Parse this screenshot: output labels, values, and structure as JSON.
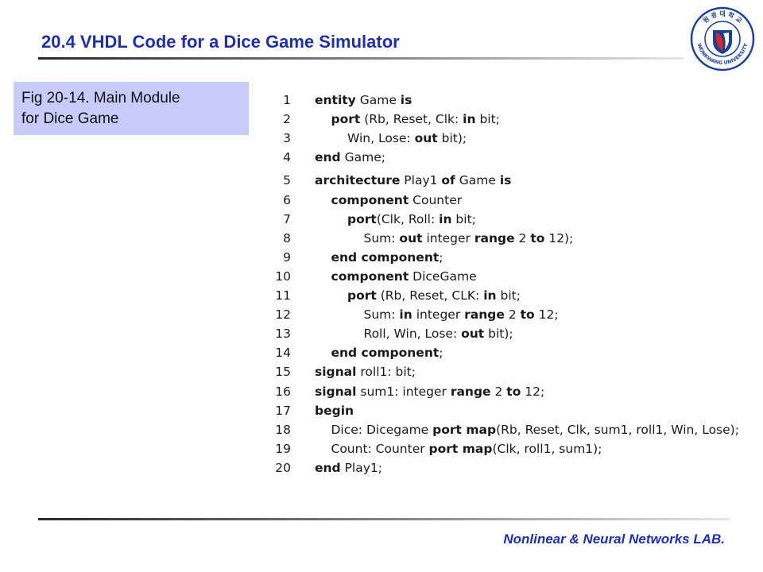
{
  "slide": {
    "title": "20.4 VHDL Code for a Dice Game Simulator",
    "caption_line1": "Fig 20-14. Main Module",
    "caption_line2": "for Dice Game",
    "footer": "Nonlinear & Neural Networks LAB."
  },
  "logo": {
    "ring_text_top": "원 광 대 학 교",
    "ring_text_bottom": "WONKWANG UNIVERSITY",
    "colors": {
      "ring": "#1c3f95",
      "emblem_red": "#d7282f",
      "emblem_blue": "#1c3f95"
    }
  },
  "code": [
    {
      "n": "1",
      "indent": 0,
      "parts": [
        [
          "kw",
          "entity"
        ],
        [
          "t",
          " Game "
        ],
        [
          "kw",
          "is"
        ]
      ]
    },
    {
      "n": "2",
      "indent": 1,
      "parts": [
        [
          "kw",
          "port"
        ],
        [
          "t",
          " (Rb, Reset, Clk: "
        ],
        [
          "kw",
          "in"
        ],
        [
          "t",
          " bit;"
        ]
      ]
    },
    {
      "n": "3",
      "indent": 2,
      "parts": [
        [
          "t",
          "Win, Lose: "
        ],
        [
          "kw",
          "out"
        ],
        [
          "t",
          " bit);"
        ]
      ]
    },
    {
      "n": "4",
      "indent": 0,
      "parts": [
        [
          "kw",
          "end"
        ],
        [
          "t",
          " Game;"
        ]
      ]
    },
    {
      "n": "5",
      "indent": 0,
      "parts": [
        [
          "kw",
          "architecture"
        ],
        [
          "t",
          " Play1 "
        ],
        [
          "kw",
          "of"
        ],
        [
          "t",
          " Game "
        ],
        [
          "kw",
          "is"
        ]
      ]
    },
    {
      "n": "6",
      "indent": 1,
      "parts": [
        [
          "kw",
          "component"
        ],
        [
          "t",
          " Counter"
        ]
      ]
    },
    {
      "n": "7",
      "indent": 2,
      "parts": [
        [
          "kw",
          "port"
        ],
        [
          "t",
          "(Clk, Roll: "
        ],
        [
          "kw",
          "in"
        ],
        [
          "t",
          " bit;"
        ]
      ]
    },
    {
      "n": "8",
      "indent": 3,
      "parts": [
        [
          "t",
          "Sum: "
        ],
        [
          "kw",
          "out"
        ],
        [
          "t",
          " integer "
        ],
        [
          "kw",
          "range"
        ],
        [
          "t",
          " 2 "
        ],
        [
          "kw",
          "to"
        ],
        [
          "t",
          " 12);"
        ]
      ]
    },
    {
      "n": "9",
      "indent": 1,
      "parts": [
        [
          "kw",
          "end component"
        ],
        [
          "t",
          ";"
        ]
      ]
    },
    {
      "n": "10",
      "indent": 1,
      "parts": [
        [
          "kw",
          "component"
        ],
        [
          "t",
          " DiceGame"
        ]
      ]
    },
    {
      "n": "11",
      "indent": 2,
      "parts": [
        [
          "kw",
          "port"
        ],
        [
          "t",
          " (Rb, Reset, CLK: "
        ],
        [
          "kw",
          "in"
        ],
        [
          "t",
          " bit;"
        ]
      ]
    },
    {
      "n": "12",
      "indent": 3,
      "parts": [
        [
          "t",
          "Sum: "
        ],
        [
          "kw",
          "in"
        ],
        [
          "t",
          " integer "
        ],
        [
          "kw",
          "range"
        ],
        [
          "t",
          " 2 "
        ],
        [
          "kw",
          "to"
        ],
        [
          "t",
          " 12;"
        ]
      ]
    },
    {
      "n": "13",
      "indent": 3,
      "parts": [
        [
          "t",
          "Roll, Win, Lose: "
        ],
        [
          "kw",
          "out"
        ],
        [
          "t",
          " bit);"
        ]
      ]
    },
    {
      "n": "14",
      "indent": 1,
      "parts": [
        [
          "kw",
          "end component"
        ],
        [
          "t",
          ";"
        ]
      ]
    },
    {
      "n": "15",
      "indent": 0,
      "parts": [
        [
          "kw",
          "signal"
        ],
        [
          "t",
          " roll1: bit;"
        ]
      ]
    },
    {
      "n": "16",
      "indent": 0,
      "parts": [
        [
          "kw",
          "signal"
        ],
        [
          "t",
          " sum1: integer "
        ],
        [
          "kw",
          "range"
        ],
        [
          "t",
          " 2 "
        ],
        [
          "kw",
          "to"
        ],
        [
          "t",
          " 12;"
        ]
      ]
    },
    {
      "n": "17",
      "indent": 0,
      "parts": [
        [
          "kw",
          "begin"
        ]
      ]
    },
    {
      "n": "18",
      "indent": 1,
      "parts": [
        [
          "t",
          "Dice: Dicegame "
        ],
        [
          "kw",
          "port map"
        ],
        [
          "t",
          "(Rb, Reset, Clk, sum1, roll1, Win, Lose);"
        ]
      ]
    },
    {
      "n": "19",
      "indent": 1,
      "parts": [
        [
          "t",
          "Count: Counter "
        ],
        [
          "kw",
          "port map"
        ],
        [
          "t",
          "(Clk, roll1, sum1);"
        ]
      ]
    },
    {
      "n": "20",
      "indent": 0,
      "parts": [
        [
          "kw",
          "end"
        ],
        [
          "t",
          " Play1;"
        ]
      ]
    }
  ]
}
